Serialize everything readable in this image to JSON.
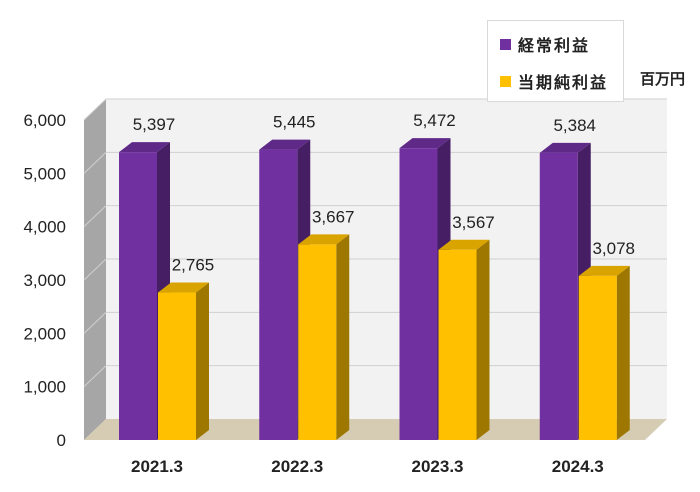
{
  "chart_data": {
    "type": "bar",
    "categories": [
      "2021.3",
      "2022.3",
      "2023.3",
      "2024.3"
    ],
    "series": [
      {
        "name": "経常利益",
        "values": [
          5397,
          5445,
          5472,
          5384
        ],
        "color": "#7030a0"
      },
      {
        "name": "当期純利益",
        "values": [
          2765,
          3667,
          3567,
          3078
        ],
        "color": "#ffc000"
      }
    ],
    "data_labels": {
      "series_0": [
        "5,397",
        "5,445",
        "5,472",
        "5,384"
      ],
      "series_1": [
        "2,765",
        "3,667",
        "3,567",
        "3,078"
      ]
    },
    "y_ticks": [
      "0",
      "1,000",
      "2,000",
      "3,000",
      "4,000",
      "5,000",
      "6,000"
    ],
    "ylim": [
      0,
      6000
    ],
    "unit": "百万円",
    "legend_position": "top-right",
    "grid": true,
    "style": "3d-column"
  },
  "colors": {
    "wall": "#f2f2f2",
    "side_wall": "#a6a6a6",
    "floor": "#d6ccb4",
    "gridline": "#d0d0d0"
  }
}
